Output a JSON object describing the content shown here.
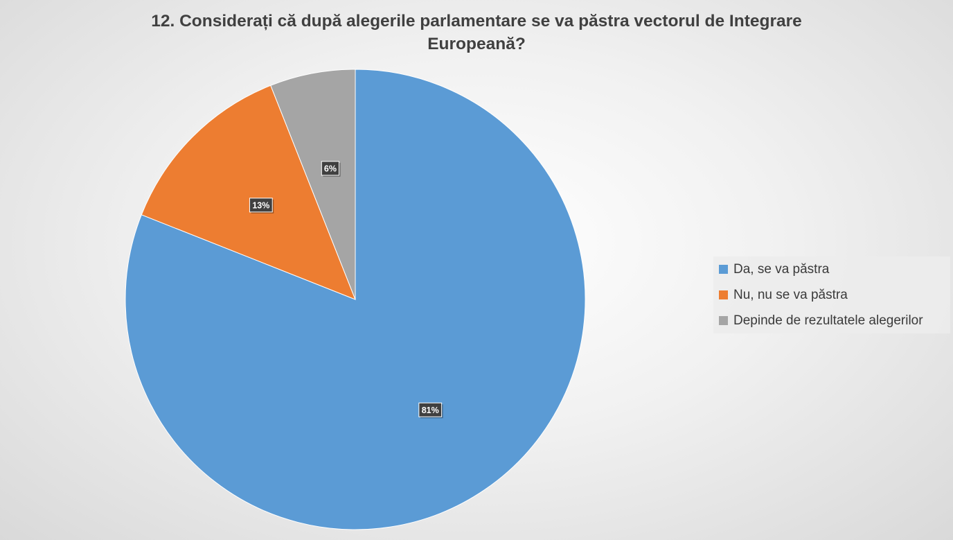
{
  "chart_data": {
    "type": "pie",
    "title_line1": "12. Considerați că după alegerile parlamentare se va păstra vectorul de Integrare",
    "title_line2": "Europeană?",
    "slices": [
      {
        "label": "Da, se va păstra",
        "value": 81,
        "value_label": "81%",
        "color": "#5b9bd5"
      },
      {
        "label": "Nu, nu se va păstra",
        "value": 13,
        "value_label": "13%",
        "color": "#ed7d31"
      },
      {
        "label": "Depinde de rezultatele alegerilor",
        "value": 6,
        "value_label": "6%",
        "color": "#a5a5a5"
      }
    ],
    "legend_position": "right"
  }
}
